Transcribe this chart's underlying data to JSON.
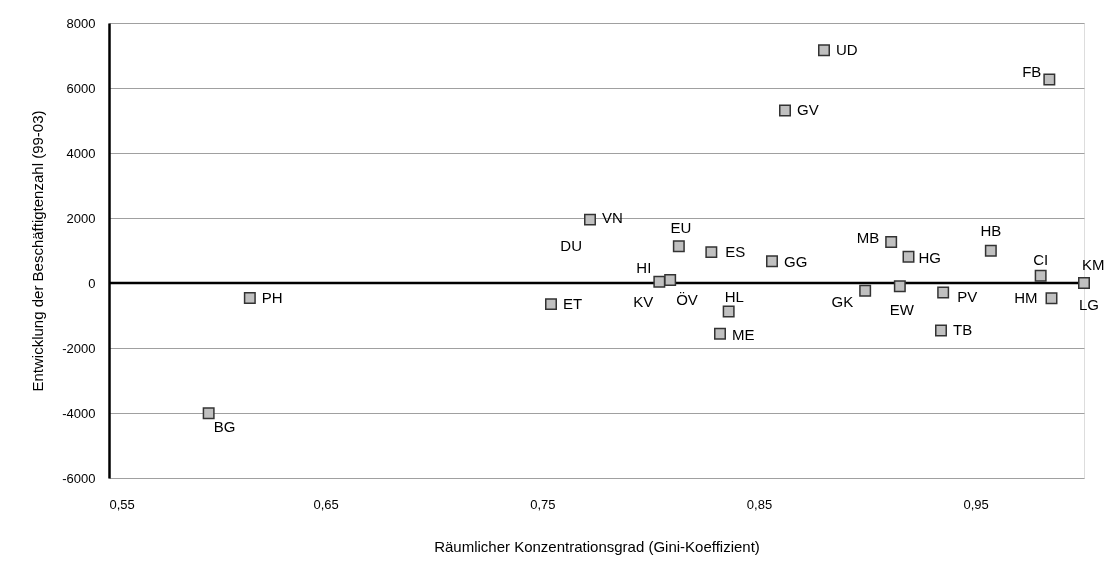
{
  "chart_data": {
    "type": "scatter",
    "xlabel": "Räumlicher Konzentrationsgrad (Gini-Koeffizient)",
    "ylabel": "Entwicklung der Beschäftigtenzahl (99-03)",
    "xlim": [
      0.55,
      1.0
    ],
    "xticks": [
      {
        "value": 0.55,
        "label": "0,55"
      },
      {
        "value": 0.65,
        "label": "0,65"
      },
      {
        "value": 0.75,
        "label": "0,75"
      },
      {
        "value": 0.85,
        "label": "0,85"
      },
      {
        "value": 0.95,
        "label": "0,95"
      }
    ],
    "ylim": [
      -6000,
      8000
    ],
    "yticks": [
      -6000,
      -4000,
      -2000,
      0,
      2000,
      4000,
      6000,
      8000
    ],
    "grid": "y",
    "marker": "square",
    "ref_lines": [
      {
        "axis": "y",
        "value": 0,
        "color": "#000000"
      }
    ],
    "series": [
      {
        "color": "#c0c0c0",
        "x": [
          0.615,
          0.596,
          0.754,
          0.772,
          0.813,
          0.804,
          0.809,
          0.828,
          0.856,
          0.836,
          0.832,
          0.911,
          0.919,
          0.899,
          0.915,
          0.935,
          0.934,
          0.957,
          0.98,
          0.985,
          1.0,
          0.88,
          0.984,
          0.862
        ],
        "values": [
          -460,
          -4010,
          -650,
          1950,
          1130,
          40,
          90,
          950,
          670,
          -880,
          -1560,
          1260,
          810,
          -240,
          -100,
          -290,
          -1460,
          990,
          220,
          -470,
          0,
          7160,
          6260,
          5310
        ]
      }
    ],
    "annotations": [
      {
        "text": "PH",
        "x": 0.615,
        "y": -460
      },
      {
        "text": "BG",
        "x": 0.596,
        "y": -4010
      },
      {
        "text": "ET",
        "x": 0.754,
        "y": -650
      },
      {
        "text": "VN",
        "x": 0.772,
        "y": 1950
      },
      {
        "text": "DU",
        "x": 0.772,
        "y": 1950
      },
      {
        "text": "EU",
        "x": 0.813,
        "y": 1130
      },
      {
        "text": "HI",
        "x": 0.804,
        "y": 40
      },
      {
        "text": "KV",
        "x": 0.804,
        "y": 40
      },
      {
        "text": "ÖV",
        "x": 0.809,
        "y": 90
      },
      {
        "text": "ES",
        "x": 0.828,
        "y": 950
      },
      {
        "text": "GG",
        "x": 0.856,
        "y": 670
      },
      {
        "text": "HL",
        "x": 0.836,
        "y": -880
      },
      {
        "text": "ME",
        "x": 0.832,
        "y": -1560
      },
      {
        "text": "MB",
        "x": 0.911,
        "y": 1260
      },
      {
        "text": "HG",
        "x": 0.919,
        "y": 810
      },
      {
        "text": "GK",
        "x": 0.899,
        "y": -240
      },
      {
        "text": "EW",
        "x": 0.915,
        "y": -100
      },
      {
        "text": "PV",
        "x": 0.935,
        "y": -290
      },
      {
        "text": "TB",
        "x": 0.934,
        "y": -1460
      },
      {
        "text": "HB",
        "x": 0.957,
        "y": 990
      },
      {
        "text": "CI",
        "x": 0.98,
        "y": 220
      },
      {
        "text": "HM",
        "x": 0.985,
        "y": -470
      },
      {
        "text": "KM",
        "x": 1.0,
        "y": 0
      },
      {
        "text": "LG",
        "x": 1.0,
        "y": 0
      },
      {
        "text": "UD",
        "x": 0.88,
        "y": 7160
      },
      {
        "text": "FB",
        "x": 0.984,
        "y": 6260
      },
      {
        "text": "GV",
        "x": 0.862,
        "y": 5310
      }
    ]
  }
}
